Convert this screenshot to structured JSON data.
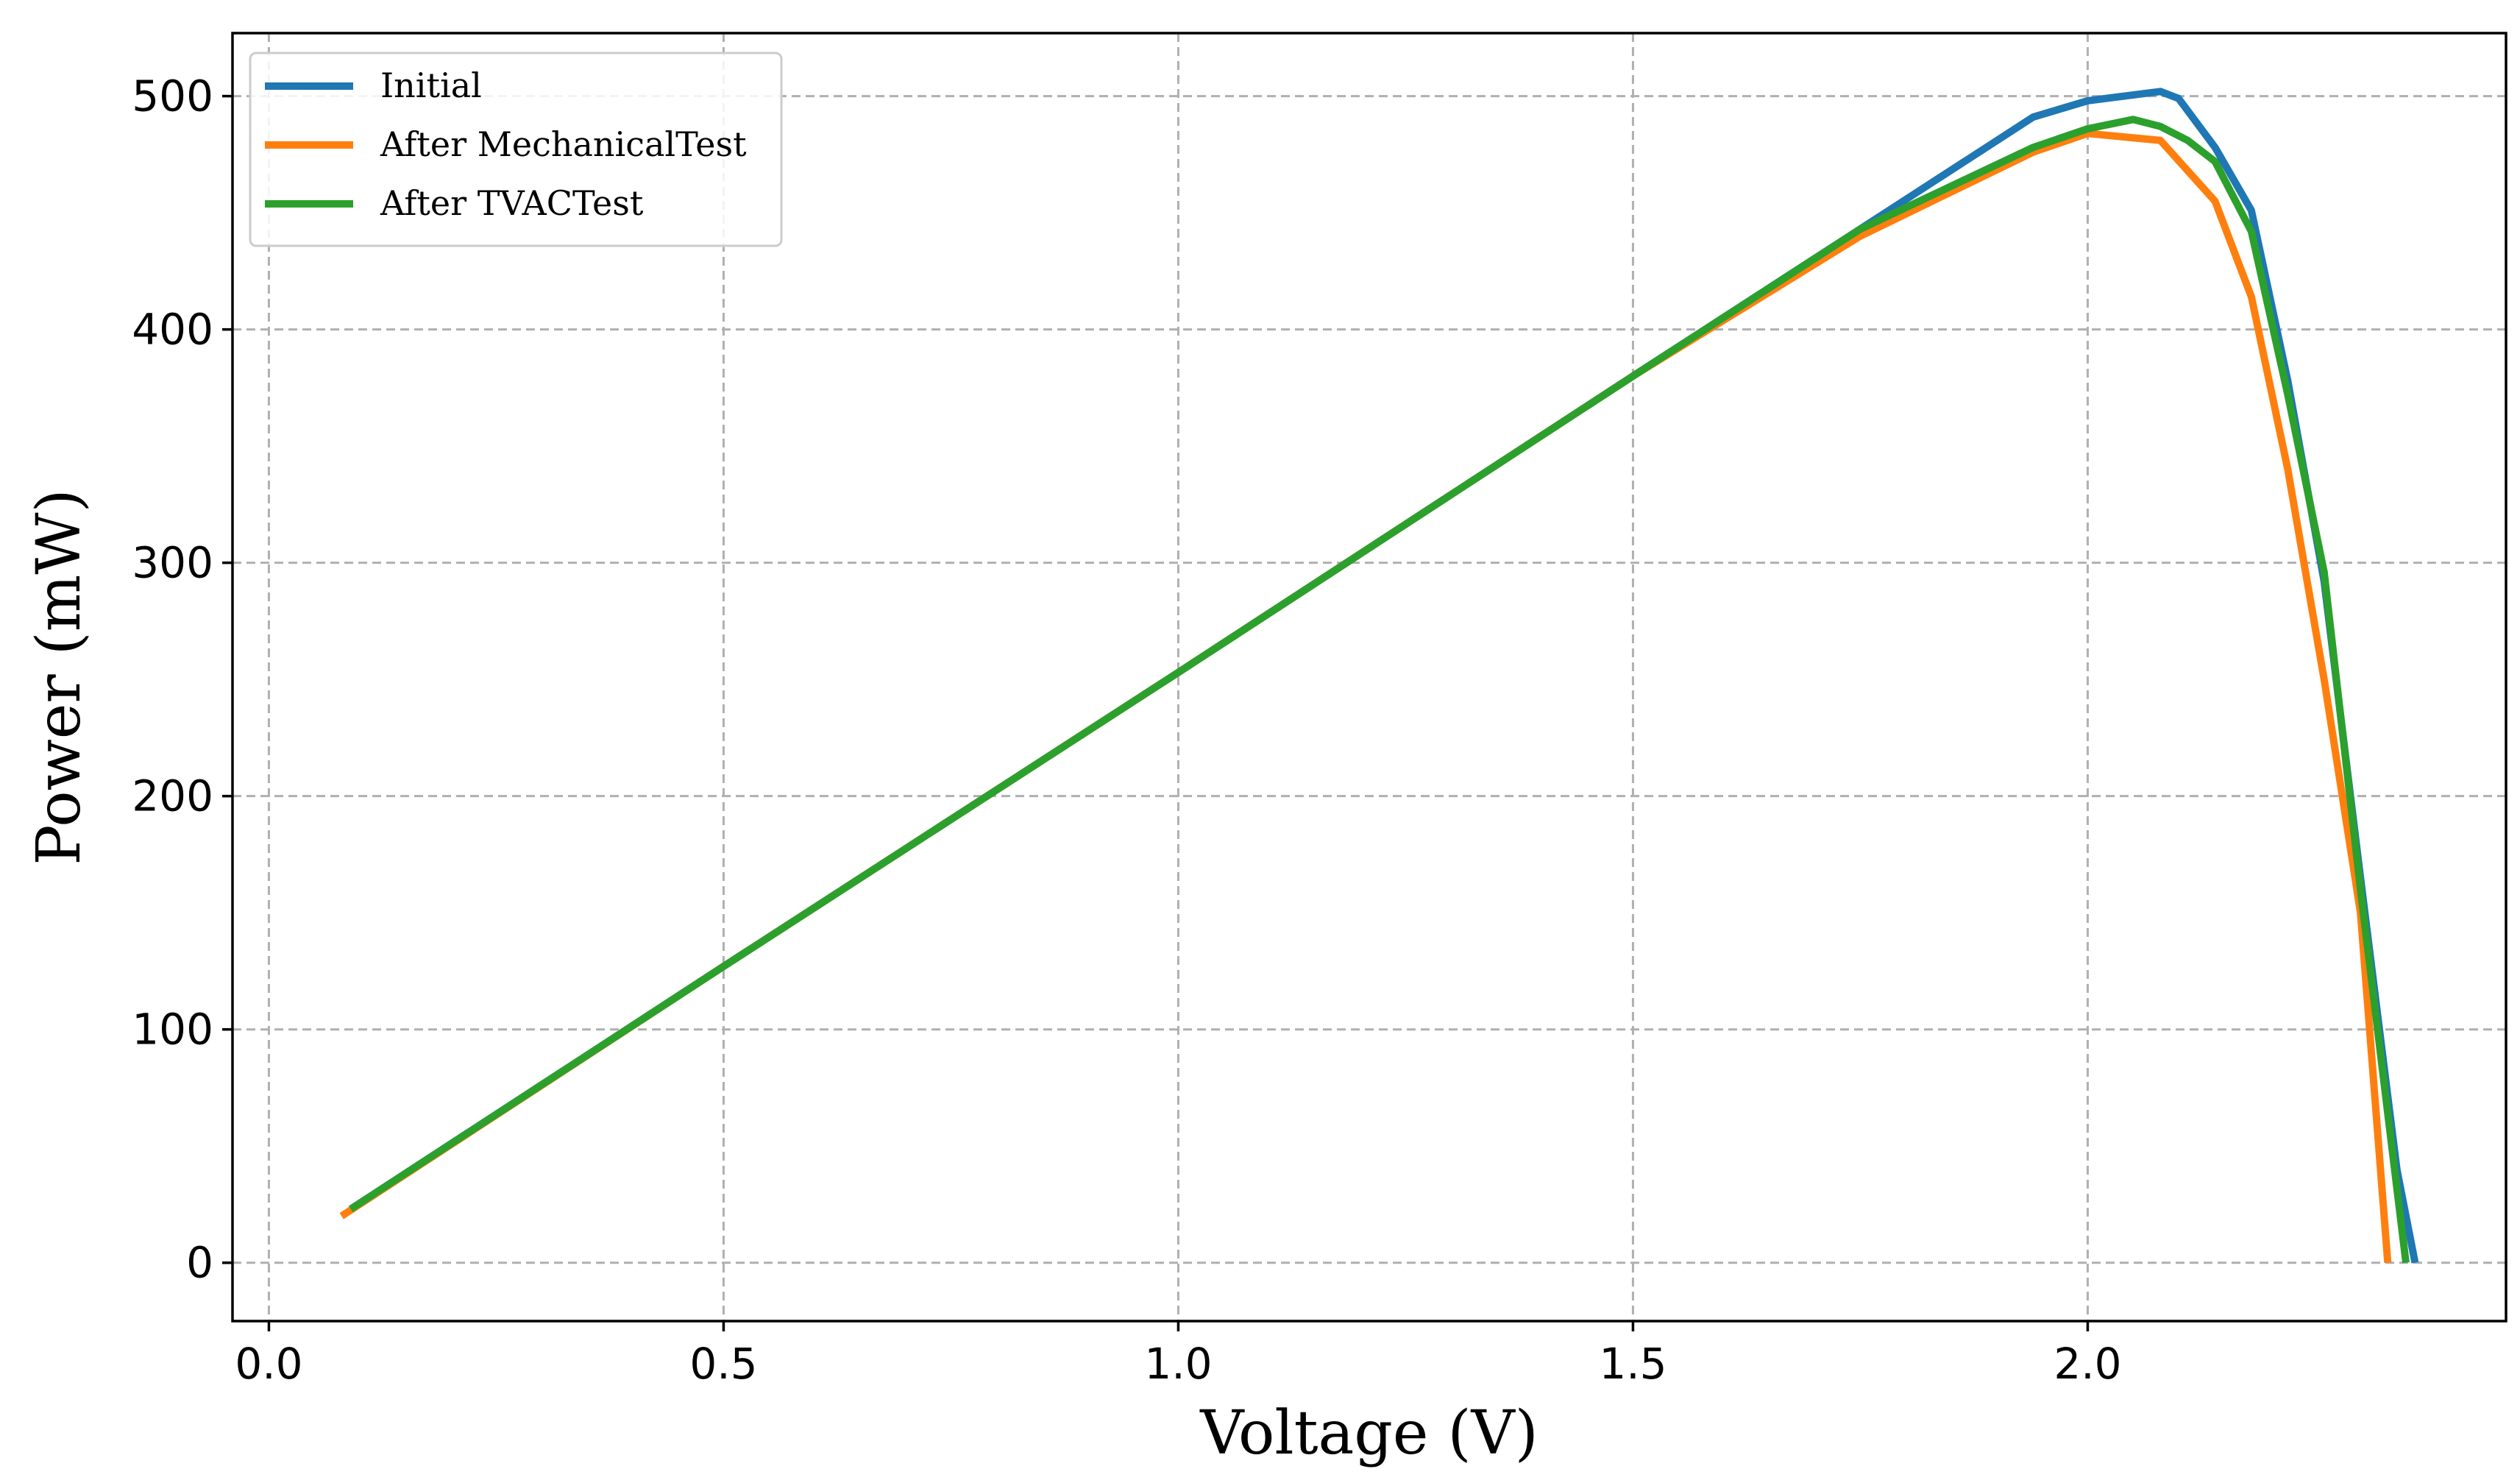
{
  "chart_data": {
    "type": "line",
    "title": "",
    "xlabel": "Voltage (V)",
    "ylabel": "Power (mW)",
    "xlim": [
      -0.04,
      2.46
    ],
    "ylim": [
      -25,
      527
    ],
    "xticks": [
      0.0,
      0.5,
      1.0,
      1.5,
      2.0
    ],
    "xtick_labels": [
      "0.0",
      "0.5",
      "1.0",
      "1.5",
      "2.0"
    ],
    "yticks": [
      0,
      100,
      200,
      300,
      400,
      500
    ],
    "ytick_labels": [
      "0",
      "100",
      "200",
      "300",
      "400",
      "500"
    ],
    "grid": true,
    "legend_position": "top-left",
    "series": [
      {
        "name": "Initial",
        "color": "#1f77b4",
        "x": [
          0.09,
          0.5,
          1.0,
          1.5,
          1.94,
          2.0,
          2.08,
          2.1,
          2.14,
          2.18,
          2.22,
          2.26,
          2.3,
          2.34,
          2.36
        ],
        "y": [
          23,
          127,
          253,
          380,
          491,
          498,
          502,
          499,
          478,
          451,
          378,
          292,
          165,
          40,
          0
        ]
      },
      {
        "name": "After MechanicalTest",
        "color": "#ff7f0e",
        "x": [
          0.08,
          0.5,
          1.0,
          1.5,
          1.75,
          1.94,
          2.0,
          2.08,
          2.14,
          2.18,
          2.22,
          2.26,
          2.3,
          2.33
        ],
        "y": [
          20,
          127,
          253,
          380,
          440,
          476,
          484,
          481,
          455,
          414,
          340,
          250,
          150,
          0
        ]
      },
      {
        "name": "After TVACTest",
        "color": "#2ca02c",
        "x": [
          0.09,
          0.5,
          1.0,
          1.5,
          1.75,
          1.94,
          2.0,
          2.05,
          2.08,
          2.11,
          2.14,
          2.18,
          2.22,
          2.26,
          2.3,
          2.35
        ],
        "y": [
          23,
          127,
          253,
          380,
          443,
          478,
          486,
          490,
          487,
          481,
          472,
          442,
          372,
          296,
          160,
          0
        ]
      }
    ]
  }
}
